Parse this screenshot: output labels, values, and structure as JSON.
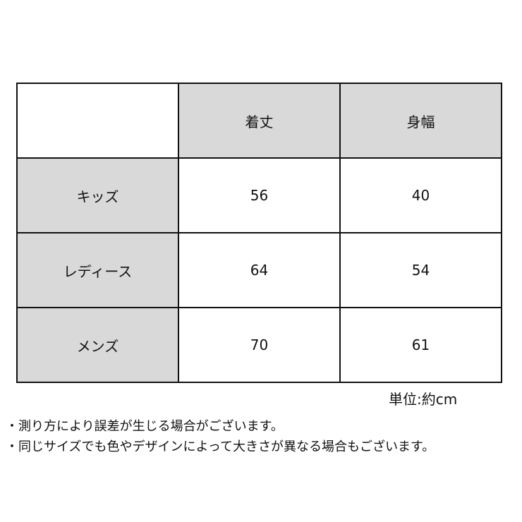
{
  "table": {
    "headers": [
      "",
      "着丈",
      "身幅"
    ],
    "rows": [
      {
        "label": "キッズ",
        "values": [
          "56",
          "40"
        ]
      },
      {
        "label": "レディース",
        "values": [
          "64",
          "54"
        ]
      },
      {
        "label": "メンズ",
        "values": [
          "70",
          "61"
        ]
      }
    ]
  },
  "unit": "単位:約cm",
  "notes": [
    "・測り方により誤差が生じる場合がございます。",
    "・同じサイズでも色やデザインによって大きさが異なる場合もございます。"
  ],
  "colors": {
    "header_fill": "#d9d9d9",
    "border": "#111111"
  }
}
